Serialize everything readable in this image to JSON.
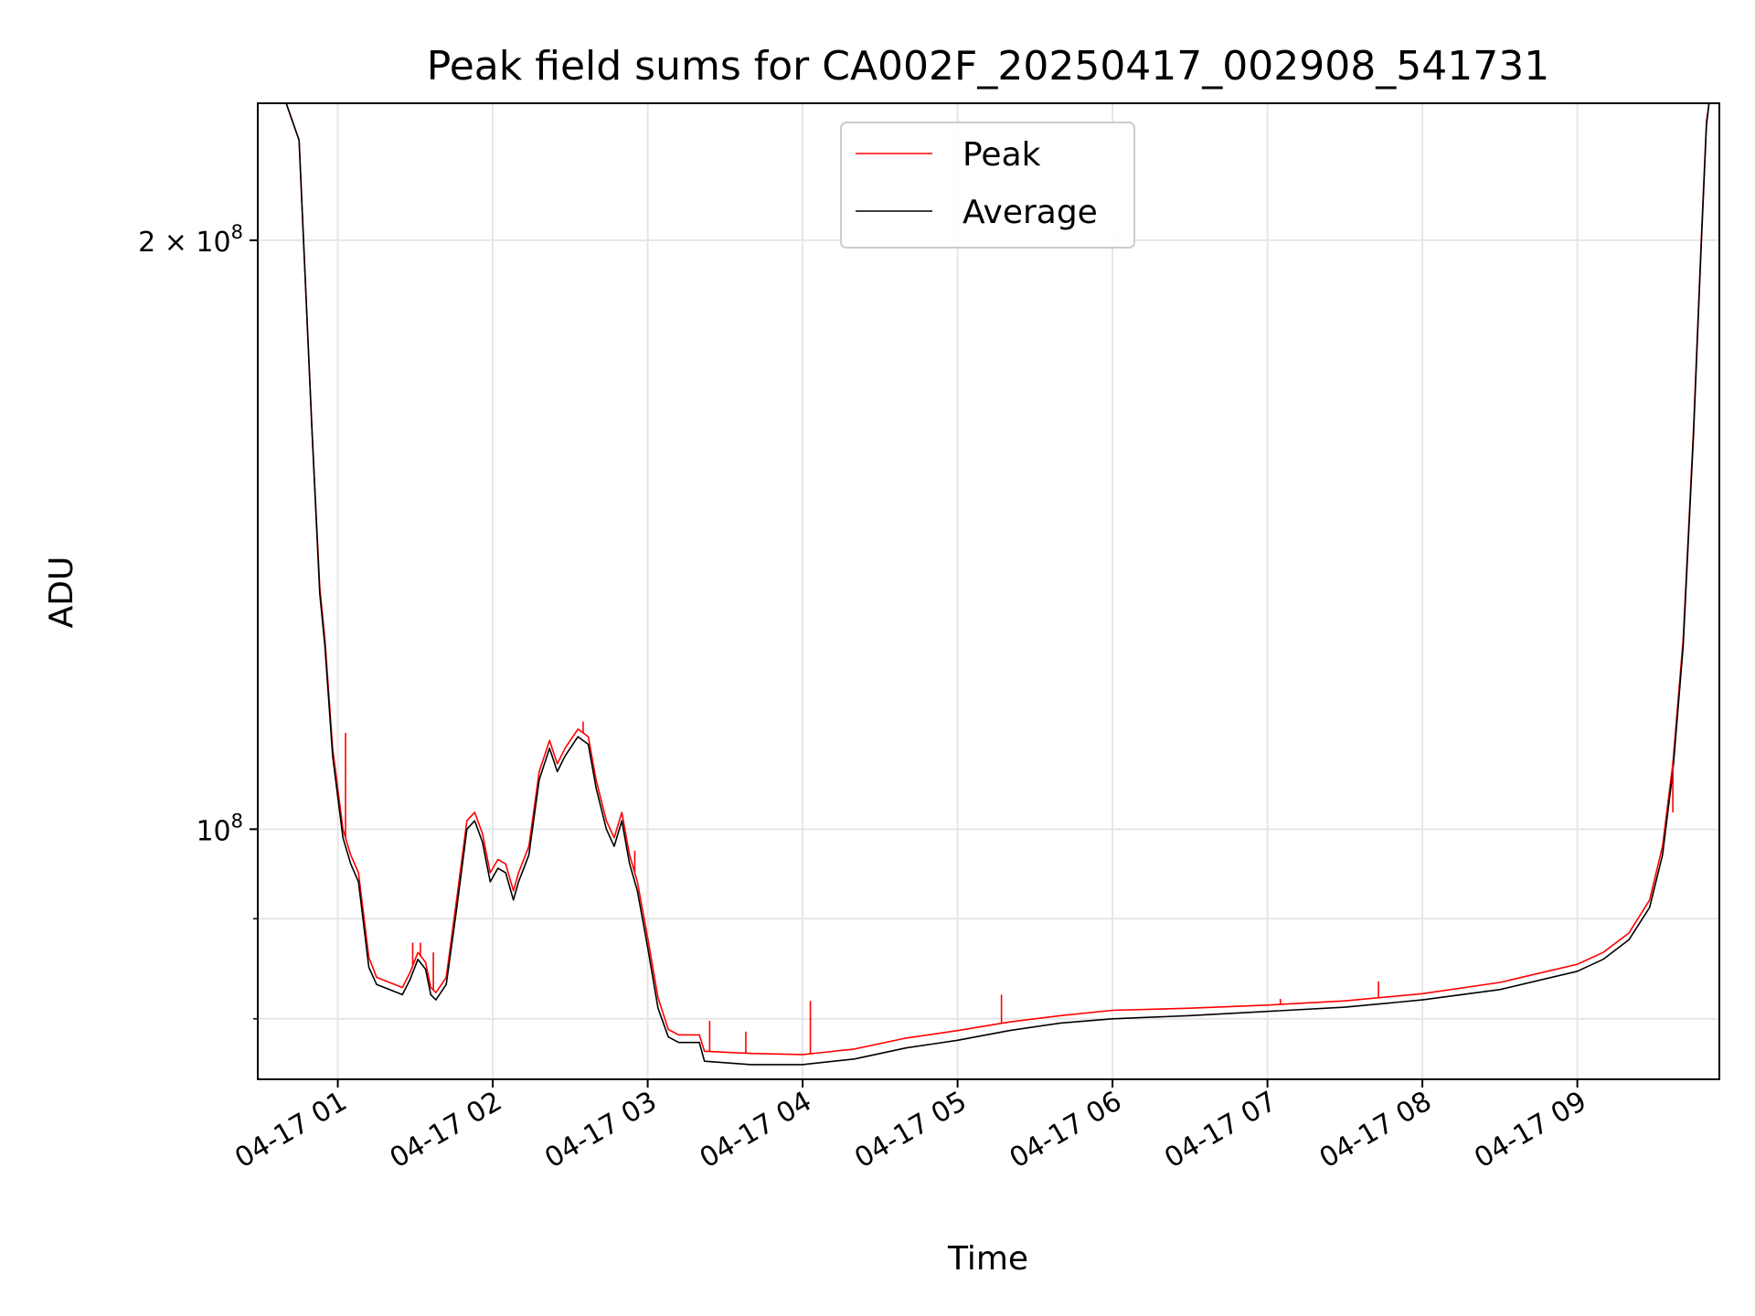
{
  "chart_data": {
    "type": "line",
    "title": "Peak field sums for CA002F_20250417_002908_541731",
    "xlabel": "Time",
    "ylabel": "ADU",
    "y_scale": "log",
    "grid": true,
    "legend_placement": "upper-center",
    "xlim": [
      "2025-04-17 00:29",
      "2025-04-17 09:55"
    ],
    "ylim": [
      74500000,
      235000000
    ],
    "x_ticks": [
      {
        "t": "2025-04-17 01:00",
        "label": "04-17 01"
      },
      {
        "t": "2025-04-17 02:00",
        "label": "04-17 02"
      },
      {
        "t": "2025-04-17 03:00",
        "label": "04-17 03"
      },
      {
        "t": "2025-04-17 04:00",
        "label": "04-17 04"
      },
      {
        "t": "2025-04-17 05:00",
        "label": "04-17 05"
      },
      {
        "t": "2025-04-17 06:00",
        "label": "04-17 06"
      },
      {
        "t": "2025-04-17 07:00",
        "label": "04-17 07"
      },
      {
        "t": "2025-04-17 08:00",
        "label": "04-17 08"
      },
      {
        "t": "2025-04-17 09:00",
        "label": "04-17 09"
      }
    ],
    "y_ticks_major": [
      {
        "value": 200000000,
        "base": "2 × 10",
        "exp": "8"
      },
      {
        "value": 100000000,
        "base": "10",
        "exp": "8"
      }
    ],
    "y_ticks_minor": [
      80000000,
      90000000
    ],
    "series": [
      {
        "name": "Peak",
        "color": "#ff0000",
        "points": [
          [
            "2025-04-17 00:29",
            235000000
          ],
          [
            "2025-04-17 00:40",
            235000000
          ],
          [
            "2025-04-17 00:45",
            225000000
          ],
          [
            "2025-04-17 00:50",
            160000000
          ],
          [
            "2025-04-17 00:53",
            133000000
          ],
          [
            "2025-04-17 00:55",
            125000000
          ],
          [
            "2025-04-17 00:58",
            110000000
          ],
          [
            "2025-04-17 01:02",
            100000000
          ],
          [
            "2025-04-17 01:05",
            97000000
          ],
          [
            "2025-04-17 01:08",
            95000000
          ],
          [
            "2025-04-17 01:12",
            86000000
          ],
          [
            "2025-04-17 01:15",
            84000000
          ],
          [
            "2025-04-17 01:20",
            83500000
          ],
          [
            "2025-04-17 01:25",
            83000000
          ],
          [
            "2025-04-17 01:28",
            84500000
          ],
          [
            "2025-04-17 01:31",
            86500000
          ],
          [
            "2025-04-17 01:34",
            85500000
          ],
          [
            "2025-04-17 01:36",
            83000000
          ],
          [
            "2025-04-17 01:38",
            82500000
          ],
          [
            "2025-04-17 01:42",
            84000000
          ],
          [
            "2025-04-17 01:46",
            92000000
          ],
          [
            "2025-04-17 01:50",
            101000000
          ],
          [
            "2025-04-17 01:53",
            102000000
          ],
          [
            "2025-04-17 01:56",
            99500000
          ],
          [
            "2025-04-17 01:59",
            95000000
          ],
          [
            "2025-04-17 02:02",
            96500000
          ],
          [
            "2025-04-17 02:05",
            96000000
          ],
          [
            "2025-04-17 02:08",
            93000000
          ],
          [
            "2025-04-17 02:10",
            95000000
          ],
          [
            "2025-04-17 02:14",
            98000000
          ],
          [
            "2025-04-17 02:18",
            107000000
          ],
          [
            "2025-04-17 02:22",
            111000000
          ],
          [
            "2025-04-17 02:25",
            108000000
          ],
          [
            "2025-04-17 02:28",
            110000000
          ],
          [
            "2025-04-17 02:33",
            112500000
          ],
          [
            "2025-04-17 02:37",
            111500000
          ],
          [
            "2025-04-17 02:40",
            106000000
          ],
          [
            "2025-04-17 02:44",
            101000000
          ],
          [
            "2025-04-17 02:47",
            99000000
          ],
          [
            "2025-04-17 02:50",
            102000000
          ],
          [
            "2025-04-17 02:53",
            97000000
          ],
          [
            "2025-04-17 02:56",
            94000000
          ],
          [
            "2025-04-17 03:00",
            88000000
          ],
          [
            "2025-04-17 03:04",
            82000000
          ],
          [
            "2025-04-17 03:08",
            79000000
          ],
          [
            "2025-04-17 03:12",
            78500000
          ],
          [
            "2025-04-17 03:20",
            78500000
          ],
          [
            "2025-04-17 03:22",
            77000000
          ],
          [
            "2025-04-17 03:40",
            76800000
          ],
          [
            "2025-04-17 04:00",
            76700000
          ],
          [
            "2025-04-17 04:20",
            77200000
          ],
          [
            "2025-04-17 04:40",
            78200000
          ],
          [
            "2025-04-17 05:00",
            78900000
          ],
          [
            "2025-04-17 05:20",
            79700000
          ],
          [
            "2025-04-17 05:40",
            80300000
          ],
          [
            "2025-04-17 06:00",
            80800000
          ],
          [
            "2025-04-17 06:30",
            81000000
          ],
          [
            "2025-04-17 07:00",
            81300000
          ],
          [
            "2025-04-17 07:30",
            81700000
          ],
          [
            "2025-04-17 08:00",
            82400000
          ],
          [
            "2025-04-17 08:30",
            83500000
          ],
          [
            "2025-04-17 09:00",
            85300000
          ],
          [
            "2025-04-17 09:10",
            86500000
          ],
          [
            "2025-04-17 09:20",
            88500000
          ],
          [
            "2025-04-17 09:28",
            92000000
          ],
          [
            "2025-04-17 09:33",
            98000000
          ],
          [
            "2025-04-17 09:37",
            108000000
          ],
          [
            "2025-04-17 09:41",
            125000000
          ],
          [
            "2025-04-17 09:45",
            160000000
          ],
          [
            "2025-04-17 09:48",
            200000000
          ],
          [
            "2025-04-17 09:50",
            230000000
          ],
          [
            "2025-04-17 09:51",
            235000000
          ],
          [
            "2025-04-17 09:55",
            235000000
          ]
        ]
      },
      {
        "name": "Average",
        "color": "#000000",
        "points": [
          [
            "2025-04-17 00:29",
            235000000
          ],
          [
            "2025-04-17 00:40",
            235000000
          ],
          [
            "2025-04-17 00:45",
            225000000
          ],
          [
            "2025-04-17 00:50",
            160000000
          ],
          [
            "2025-04-17 00:53",
            132000000
          ],
          [
            "2025-04-17 00:55",
            124000000
          ],
          [
            "2025-04-17 00:58",
            109000000
          ],
          [
            "2025-04-17 01:02",
            99000000
          ],
          [
            "2025-04-17 01:05",
            96000000
          ],
          [
            "2025-04-17 01:08",
            94000000
          ],
          [
            "2025-04-17 01:12",
            85000000
          ],
          [
            "2025-04-17 01:15",
            83300000
          ],
          [
            "2025-04-17 01:20",
            82800000
          ],
          [
            "2025-04-17 01:25",
            82300000
          ],
          [
            "2025-04-17 01:28",
            83800000
          ],
          [
            "2025-04-17 01:31",
            85800000
          ],
          [
            "2025-04-17 01:34",
            84800000
          ],
          [
            "2025-04-17 01:36",
            82300000
          ],
          [
            "2025-04-17 01:38",
            81800000
          ],
          [
            "2025-04-17 01:42",
            83300000
          ],
          [
            "2025-04-17 01:46",
            91000000
          ],
          [
            "2025-04-17 01:50",
            100000000
          ],
          [
            "2025-04-17 01:53",
            101000000
          ],
          [
            "2025-04-17 01:56",
            98500000
          ],
          [
            "2025-04-17 01:59",
            94000000
          ],
          [
            "2025-04-17 02:02",
            95500000
          ],
          [
            "2025-04-17 02:05",
            95000000
          ],
          [
            "2025-04-17 02:08",
            92000000
          ],
          [
            "2025-04-17 02:10",
            94000000
          ],
          [
            "2025-04-17 02:14",
            97000000
          ],
          [
            "2025-04-17 02:18",
            106000000
          ],
          [
            "2025-04-17 02:22",
            110000000
          ],
          [
            "2025-04-17 02:25",
            107000000
          ],
          [
            "2025-04-17 02:28",
            109000000
          ],
          [
            "2025-04-17 02:33",
            111500000
          ],
          [
            "2025-04-17 02:37",
            110500000
          ],
          [
            "2025-04-17 02:40",
            105000000
          ],
          [
            "2025-04-17 02:44",
            100000000
          ],
          [
            "2025-04-17 02:47",
            98000000
          ],
          [
            "2025-04-17 02:50",
            101000000
          ],
          [
            "2025-04-17 02:53",
            96000000
          ],
          [
            "2025-04-17 02:56",
            93000000
          ],
          [
            "2025-04-17 03:00",
            87000000
          ],
          [
            "2025-04-17 03:04",
            81000000
          ],
          [
            "2025-04-17 03:08",
            78300000
          ],
          [
            "2025-04-17 03:12",
            77800000
          ],
          [
            "2025-04-17 03:20",
            77800000
          ],
          [
            "2025-04-17 03:22",
            76100000
          ],
          [
            "2025-04-17 03:40",
            75800000
          ],
          [
            "2025-04-17 04:00",
            75800000
          ],
          [
            "2025-04-17 04:20",
            76300000
          ],
          [
            "2025-04-17 04:40",
            77300000
          ],
          [
            "2025-04-17 05:00",
            78000000
          ],
          [
            "2025-04-17 05:20",
            78900000
          ],
          [
            "2025-04-17 05:40",
            79600000
          ],
          [
            "2025-04-17 06:00",
            80000000
          ],
          [
            "2025-04-17 06:30",
            80300000
          ],
          [
            "2025-04-17 07:00",
            80700000
          ],
          [
            "2025-04-17 07:30",
            81100000
          ],
          [
            "2025-04-17 08:00",
            81800000
          ],
          [
            "2025-04-17 08:30",
            82800000
          ],
          [
            "2025-04-17 09:00",
            84600000
          ],
          [
            "2025-04-17 09:10",
            85800000
          ],
          [
            "2025-04-17 09:20",
            87800000
          ],
          [
            "2025-04-17 09:28",
            91200000
          ],
          [
            "2025-04-17 09:33",
            97000000
          ],
          [
            "2025-04-17 09:37",
            107000000
          ],
          [
            "2025-04-17 09:41",
            124000000
          ],
          [
            "2025-04-17 09:45",
            159000000
          ],
          [
            "2025-04-17 09:48",
            199000000
          ],
          [
            "2025-04-17 09:50",
            229000000
          ],
          [
            "2025-04-17 09:51",
            235000000
          ],
          [
            "2025-04-17 09:55",
            235000000
          ]
        ]
      }
    ],
    "spikes": [
      {
        "series": "Peak",
        "t": "2025-04-17 01:03",
        "value": 112000000
      },
      {
        "series": "Peak",
        "t": "2025-04-17 01:29",
        "value": 87500000
      },
      {
        "series": "Peak",
        "t": "2025-04-17 01:32",
        "value": 87500000
      },
      {
        "series": "Peak",
        "t": "2025-04-17 01:37",
        "value": 86500000
      },
      {
        "series": "Peak",
        "t": "2025-04-17 01:57",
        "value": 97500000
      },
      {
        "series": "Peak",
        "t": "2025-04-17 02:35",
        "value": 113500000
      },
      {
        "series": "Peak",
        "t": "2025-04-17 02:55",
        "value": 97500000
      },
      {
        "series": "Peak",
        "t": "2025-04-17 03:24",
        "value": 79800000
      },
      {
        "series": "Peak",
        "t": "2025-04-17 03:38",
        "value": 78800000
      },
      {
        "series": "Peak",
        "t": "2025-04-17 04:03",
        "value": 81700000
      },
      {
        "series": "Peak",
        "t": "2025-04-17 05:17",
        "value": 82300000
      },
      {
        "series": "Peak",
        "t": "2025-04-17 07:05",
        "value": 81900000
      },
      {
        "series": "Peak",
        "t": "2025-04-17 07:43",
        "value": 83600000
      },
      {
        "series": "Peak",
        "t": "2025-04-17 09:37",
        "value": 102000000
      }
    ]
  }
}
